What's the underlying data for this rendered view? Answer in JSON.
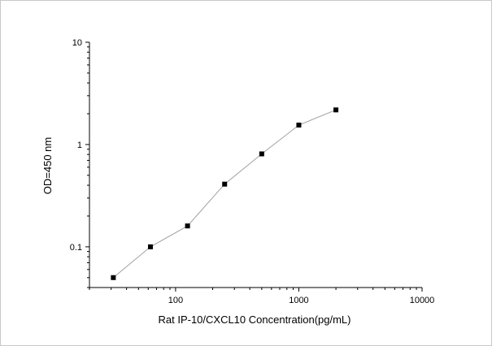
{
  "chart_data": {
    "type": "line",
    "title": "",
    "xlabel": "Rat IP-10/CXCL10  Concentration(pg/mL)",
    "ylabel": "OD=450 nm",
    "x_scale": "log",
    "y_scale": "log",
    "xlim": [
      20,
      10000
    ],
    "ylim": [
      0.04,
      10
    ],
    "x_ticks": [
      100,
      1000,
      10000
    ],
    "x_tick_labels": [
      "100",
      "1000",
      "10000"
    ],
    "y_ticks": [
      0.1,
      1,
      10
    ],
    "y_tick_labels": [
      "0.1",
      "1",
      "10"
    ],
    "grid": false,
    "legend": "none",
    "series": [
      {
        "x": [
          31.25,
          62.5,
          125,
          250,
          500,
          1000,
          2000
        ],
        "y": [
          0.05,
          0.1,
          0.16,
          0.41,
          0.81,
          1.55,
          2.18
        ],
        "marker": "square",
        "line_color": "#a0a0a0",
        "marker_color": "#000000"
      }
    ]
  }
}
